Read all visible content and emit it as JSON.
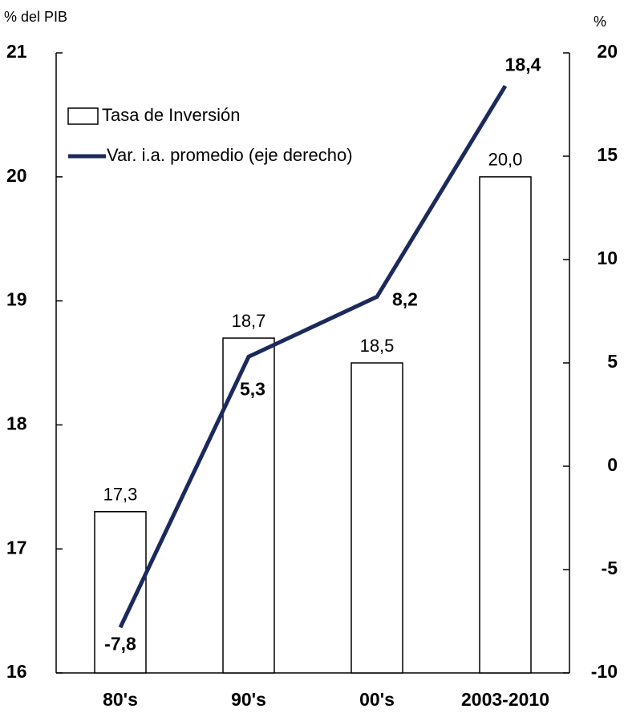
{
  "chart_data": {
    "type": "bar-line",
    "y_label": "% del PIB",
    "y2_label": "%",
    "categories": [
      "80's",
      "90's",
      "00's",
      "2003-2010"
    ],
    "series": [
      {
        "name": "Tasa de Inversión",
        "type": "bar",
        "color": "#ffffff",
        "values": [
          17.3,
          18.7,
          18.5,
          20.0
        ],
        "value_labels": [
          "17,3",
          "18,7",
          "18,5",
          "20,0"
        ]
      },
      {
        "name": "Var. i.a. promedio (eje derecho)",
        "type": "line",
        "axis": "y2",
        "color": "#1b2a5c",
        "values": [
          -7.8,
          5.3,
          8.2,
          18.4
        ],
        "value_labels": [
          "-7,8",
          "5,3",
          "8,2",
          "18,4"
        ]
      }
    ],
    "ylim": [
      16,
      21
    ],
    "yticks": [
      16,
      17,
      18,
      19,
      20,
      21
    ],
    "y2lim": [
      -10,
      20
    ],
    "y2ticks": [
      -10,
      -5,
      0,
      5,
      10,
      15,
      20
    ],
    "grid": false
  }
}
